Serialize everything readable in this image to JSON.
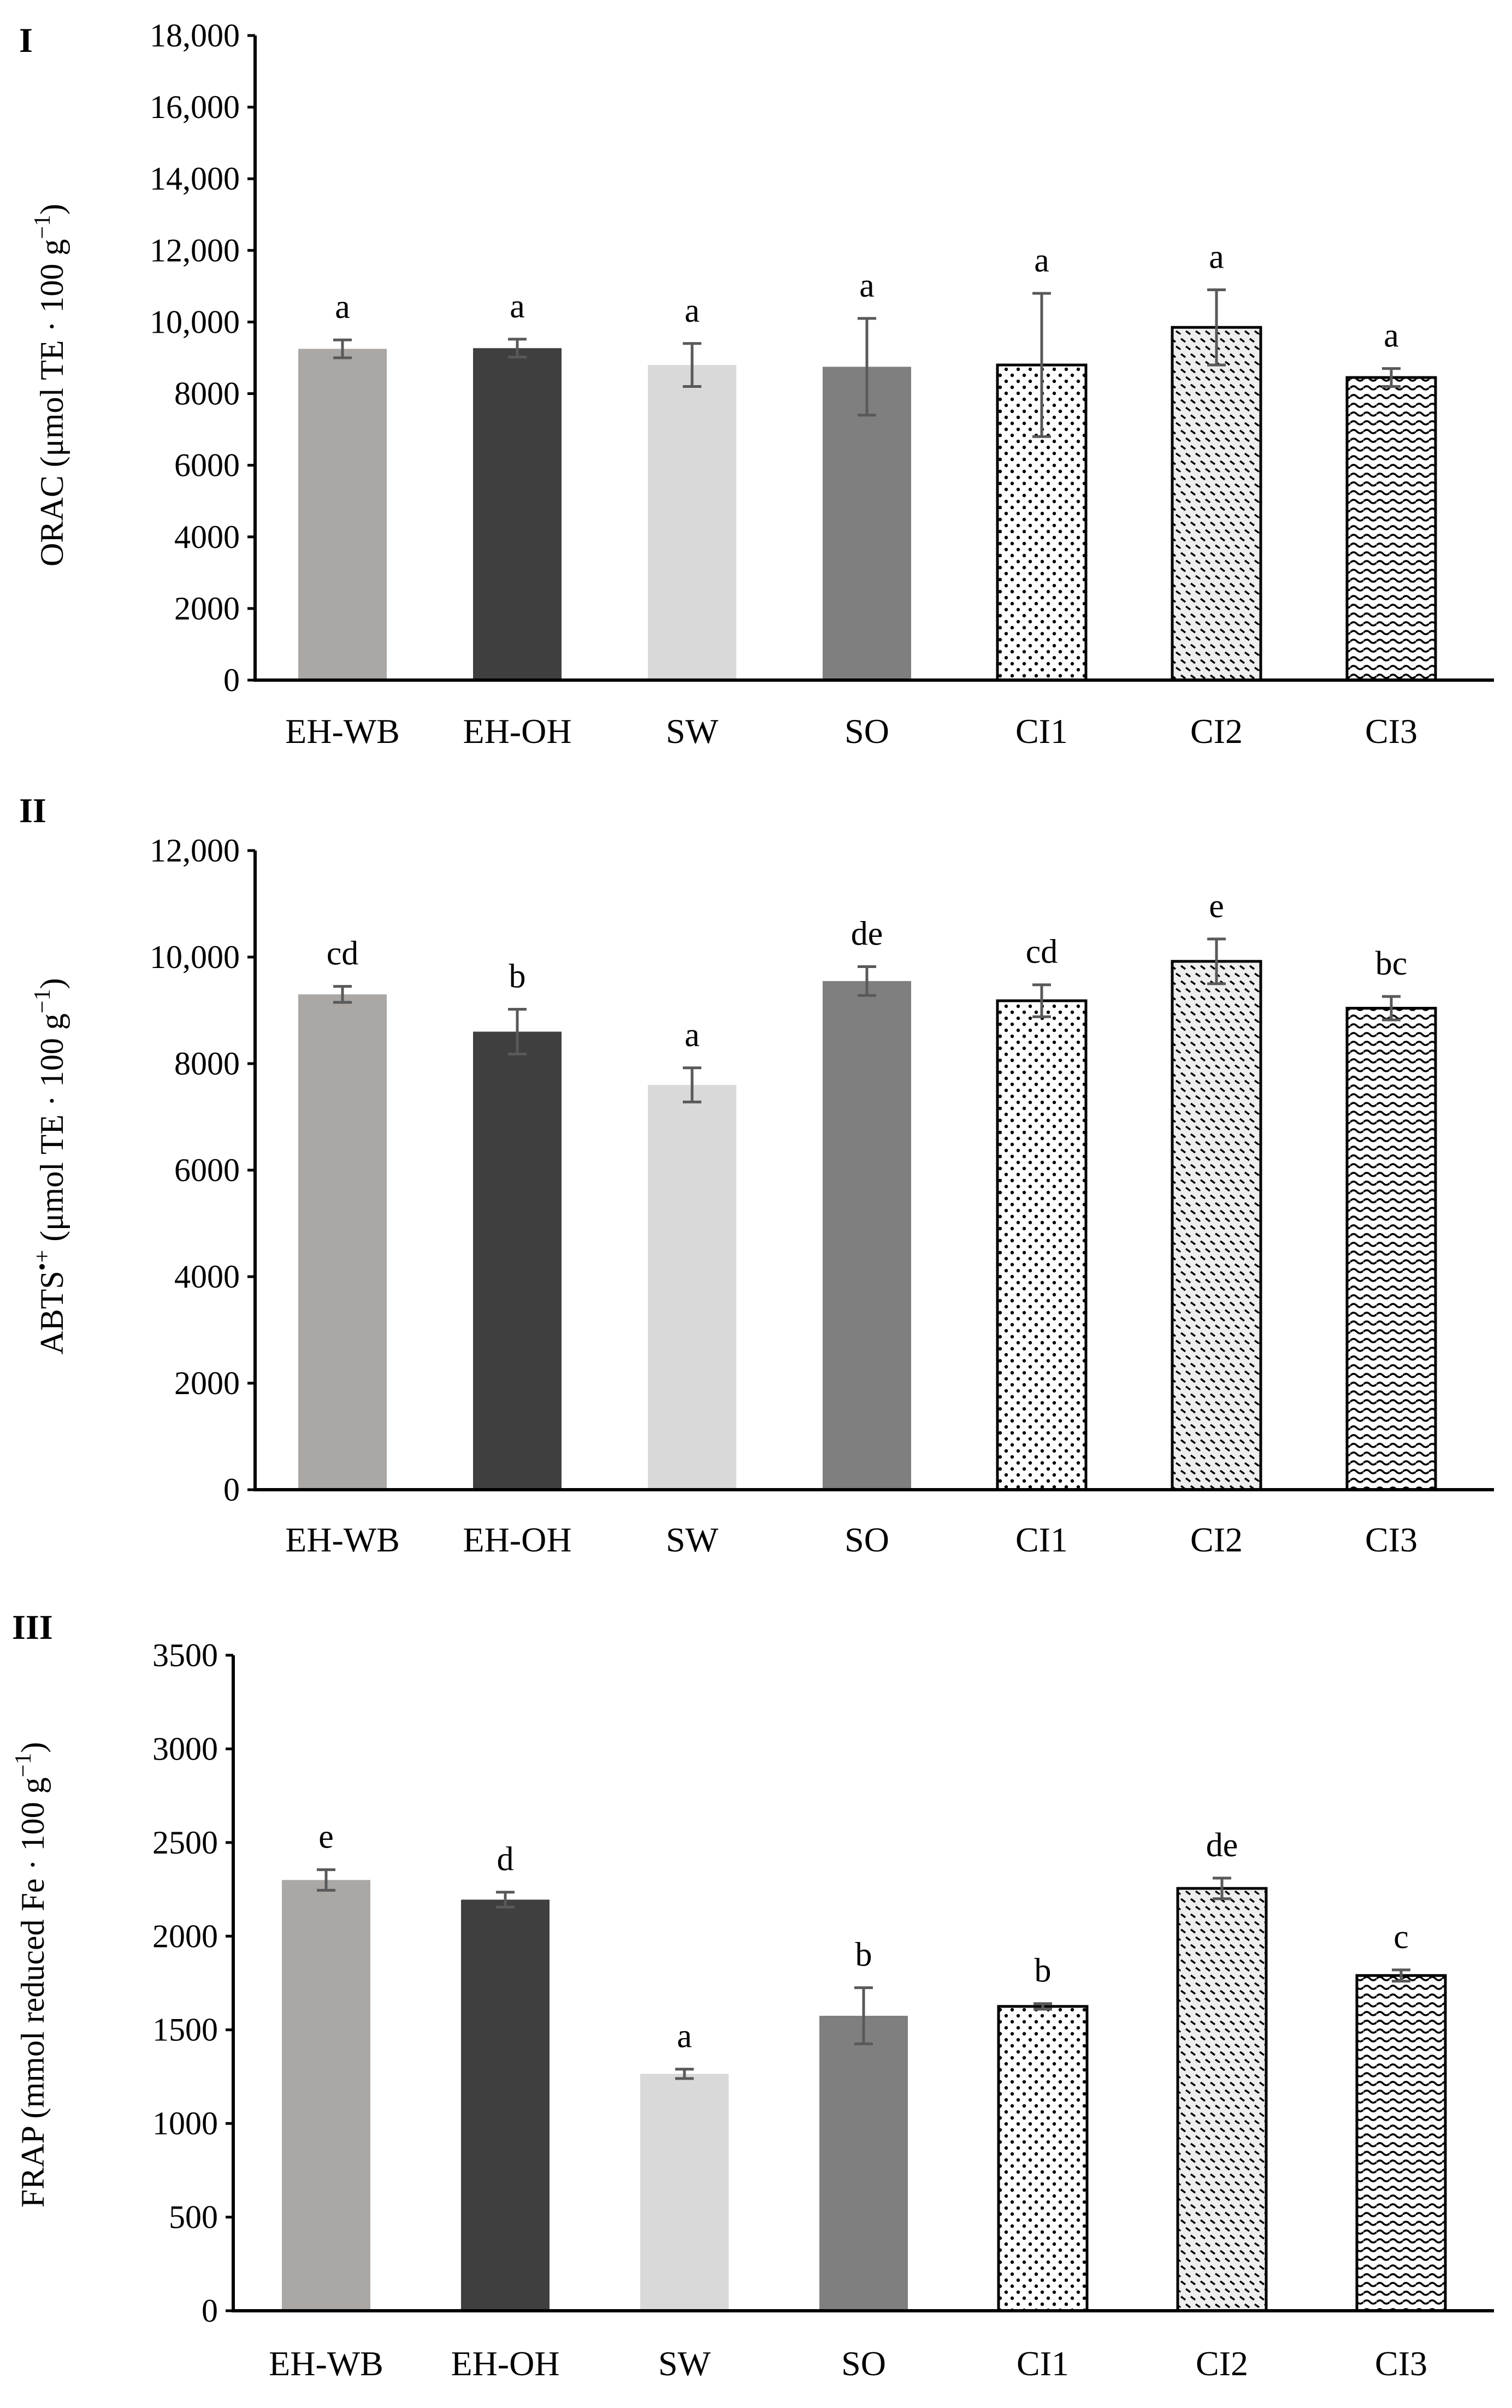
{
  "figure": {
    "panel_labels": [
      "I",
      "II",
      "III"
    ]
  },
  "styles": {
    "bar_colors": [
      "#aaa7a5",
      "#3f3f3f",
      "#d9d9d9",
      "#7f7f7f"
    ],
    "errorbar_color": "#595959",
    "axis_color": "#000000"
  },
  "y_label_parts": {
    "orac": {
      "main": "ORAC (μmol TE · 100 g",
      "sup": "−1",
      "end": ")"
    },
    "abts": {
      "main": "ABTS",
      "sup": "•+",
      "mid": " (μmol TE · 100 g",
      "sup2": "−1",
      "end": ")"
    },
    "frap": {
      "main": "FRAP (mmol reduced Fe · 100 g",
      "sup": "−1",
      "end": ")"
    }
  },
  "chart_data": [
    {
      "type": "bar",
      "panel": "I",
      "ylabel": "ORAC (μmol TE · 100 g−1)",
      "categories": [
        "EH-WB",
        "EH-OH",
        "SW",
        "SO",
        "CI1",
        "CI2",
        "CI3"
      ],
      "values": [
        9250,
        9270,
        8800,
        8750,
        8800,
        9850,
        8450
      ],
      "errors": [
        250,
        250,
        600,
        1350,
        2000,
        1050,
        250
      ],
      "significance": [
        "a",
        "a",
        "a",
        "a",
        "a",
        "a",
        "a"
      ],
      "ylim": [
        0,
        18000
      ],
      "yticks": [
        "0",
        "2000",
        "4000",
        "6000",
        "8000",
        "10,000",
        "12,000",
        "14,000",
        "16,000",
        "18,000"
      ],
      "grid": false
    },
    {
      "type": "bar",
      "panel": "II",
      "ylabel": "ABTS•+ (μmol TE · 100 g−1)",
      "categories": [
        "EH-WB",
        "EH-OH",
        "SW",
        "SO",
        "CI1",
        "CI2",
        "CI3"
      ],
      "values": [
        9300,
        8600,
        7600,
        9550,
        9180,
        9920,
        9040
      ],
      "errors": [
        150,
        420,
        320,
        270,
        300,
        420,
        220
      ],
      "significance": [
        "cd",
        "b",
        "a",
        "de",
        "cd",
        "e",
        "bc"
      ],
      "ylim": [
        0,
        12000
      ],
      "yticks": [
        "0",
        "2000",
        "4000",
        "6000",
        "8000",
        "10,000",
        "12,000"
      ],
      "grid": false
    },
    {
      "type": "bar",
      "panel": "III",
      "ylabel": "FRAP (mmol reduced Fe · 100 g−1)",
      "categories": [
        "EH-WB",
        "EH-OH",
        "SW",
        "SO",
        "CI1",
        "CI2",
        "CI3"
      ],
      "values": [
        2300,
        2195,
        1265,
        1575,
        1625,
        2255,
        1790
      ],
      "errors": [
        55,
        40,
        25,
        150,
        15,
        55,
        30
      ],
      "significance": [
        "e",
        "d",
        "a",
        "b",
        "b",
        "de",
        "c"
      ],
      "ylim": [
        0,
        3500
      ],
      "yticks": [
        "0",
        "500",
        "1000",
        "1500",
        "2000",
        "2500",
        "3000",
        "3500"
      ],
      "grid": false
    }
  ]
}
